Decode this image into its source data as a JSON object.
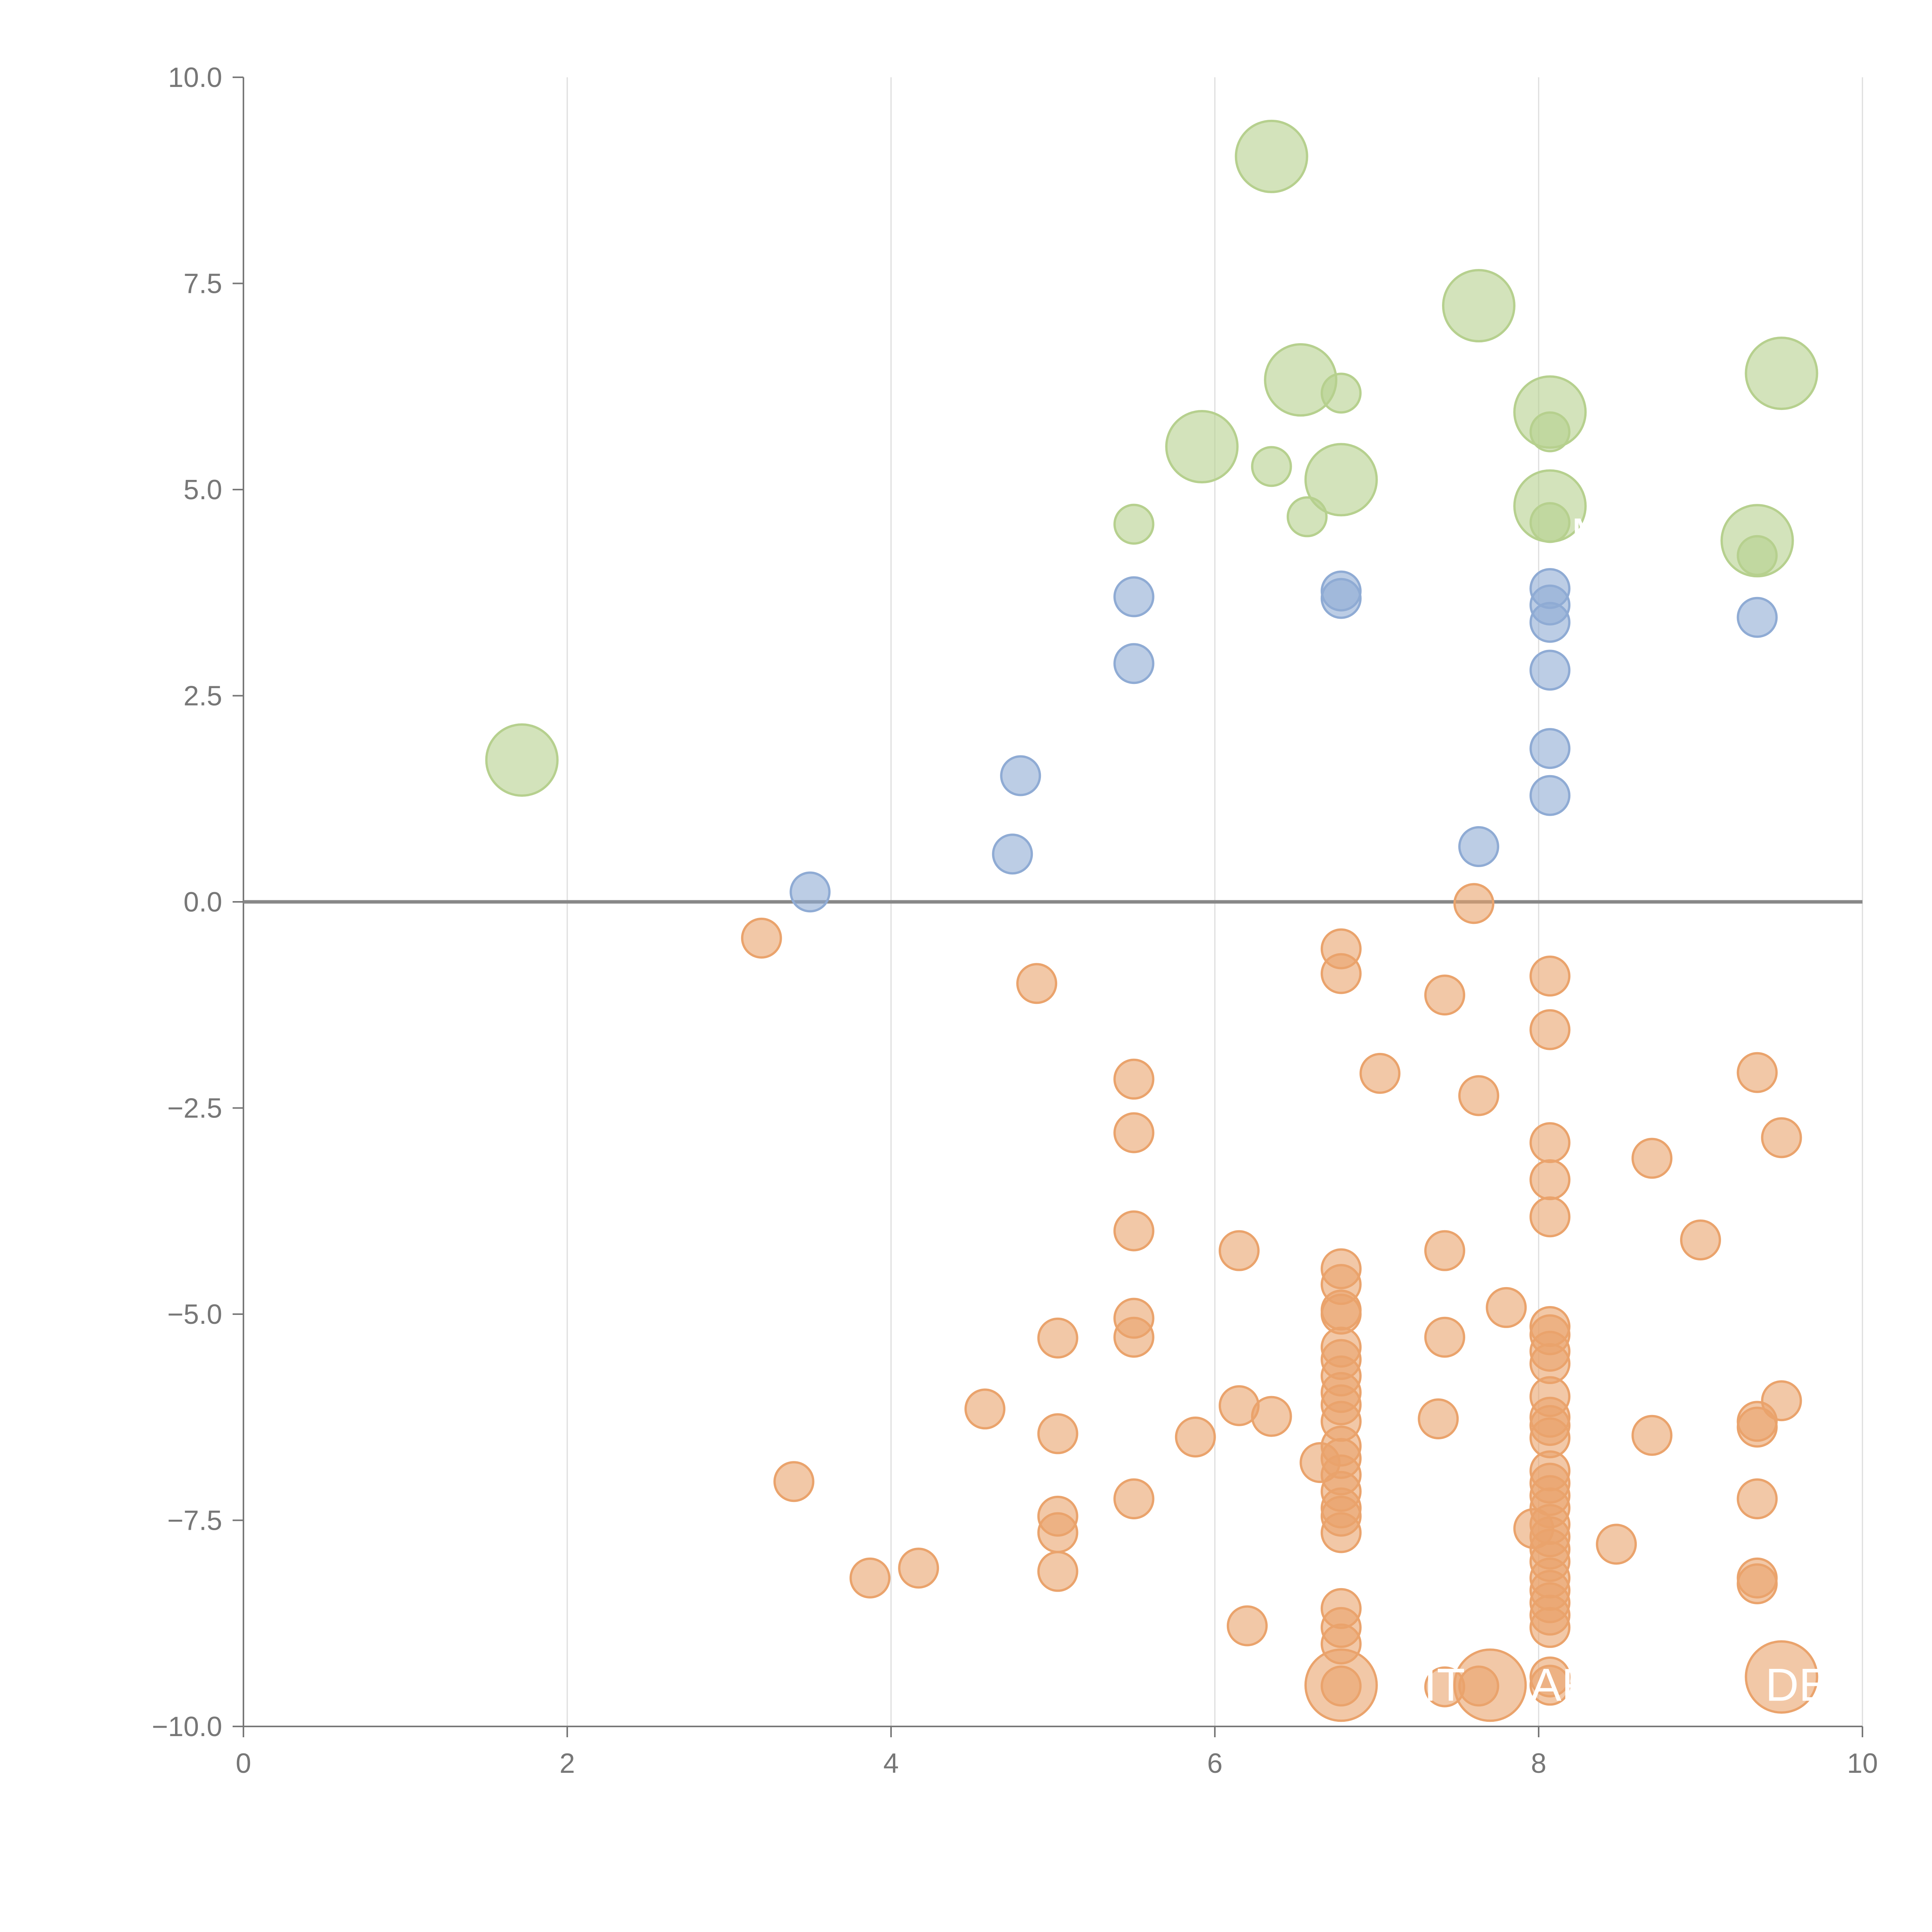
{
  "chart_data": {
    "type": "scatter",
    "title": "",
    "xlabel": "",
    "ylabel": "",
    "xlim": [
      0,
      10
    ],
    "ylim": [
      -10,
      10
    ],
    "x_ticks": [
      "0",
      "2",
      "4",
      "6",
      "8",
      "10"
    ],
    "y_ticks": [
      "10.0",
      "7.5",
      "5.0",
      "2.5",
      "0.0",
      "−2.5",
      "−5.0",
      "−7.5",
      "−10.0"
    ],
    "grid": "vertical gridlines at x ticks",
    "reference_line_y": 0,
    "colors": {
      "positive_small": "#8fabd4",
      "negative": "#eaa36c",
      "large": "#b6d08e",
      "axis": "#777777",
      "grid": "#dddddd",
      "zero_line": "#888888"
    },
    "series": [
      {
        "color": "#8fabd4",
        "points": [
          [
            3.5,
            0.12
          ],
          [
            4.8,
            1.53
          ],
          [
            4.75,
            0.58
          ],
          [
            5.5,
            3.7
          ],
          [
            5.5,
            2.89
          ],
          [
            6.78,
            3.77
          ],
          [
            6.78,
            3.68
          ],
          [
            7.63,
            0.67
          ],
          [
            8.07,
            3.8
          ],
          [
            8.07,
            3.6
          ],
          [
            8.07,
            3.39
          ],
          [
            8.07,
            2.81
          ],
          [
            8.07,
            1.86
          ],
          [
            8.07,
            1.29
          ],
          [
            9.35,
            3.45
          ]
        ]
      },
      {
        "color": "#eaa36c",
        "points": [
          [
            3.2,
            -0.44
          ],
          [
            3.4,
            -7.03
          ],
          [
            3.87,
            -8.2
          ],
          [
            4.17,
            -8.08
          ],
          [
            4.58,
            -6.15
          ],
          [
            4.9,
            -0.99
          ],
          [
            5.03,
            -5.29
          ],
          [
            5.03,
            -6.45
          ],
          [
            5.03,
            -7.45
          ],
          [
            5.03,
            -7.65
          ],
          [
            5.03,
            -8.12
          ],
          [
            5.5,
            -2.15
          ],
          [
            5.5,
            -2.8
          ],
          [
            5.5,
            -3.99
          ],
          [
            5.5,
            -5.05
          ],
          [
            5.5,
            -5.28
          ],
          [
            5.5,
            -7.24
          ],
          [
            5.88,
            -6.49
          ],
          [
            6.15,
            -4.23
          ],
          [
            6.15,
            -6.11
          ],
          [
            6.2,
            -8.78
          ],
          [
            6.35,
            -6.24
          ],
          [
            6.65,
            -6.8
          ],
          [
            6.78,
            -0.57
          ],
          [
            6.78,
            -0.87
          ],
          [
            6.78,
            -4.45
          ],
          [
            6.78,
            -4.64
          ],
          [
            6.78,
            -4.95
          ],
          [
            6.78,
            -5.0
          ],
          [
            6.78,
            -5.4
          ],
          [
            6.78,
            -5.55
          ],
          [
            6.78,
            -5.75
          ],
          [
            6.78,
            -5.95
          ],
          [
            6.78,
            -6.1
          ],
          [
            6.78,
            -6.3
          ],
          [
            6.78,
            -6.6
          ],
          [
            6.78,
            -6.75
          ],
          [
            6.78,
            -6.95
          ],
          [
            6.78,
            -7.15
          ],
          [
            6.78,
            -7.35
          ],
          [
            6.78,
            -7.45
          ],
          [
            6.78,
            -7.65
          ],
          [
            6.78,
            -8.57
          ],
          [
            6.78,
            -8.8
          ],
          [
            6.78,
            -9.0
          ],
          [
            6.78,
            -9.51
          ],
          [
            7.02,
            -2.08
          ],
          [
            7.38,
            -6.27
          ],
          [
            7.42,
            -1.13
          ],
          [
            7.42,
            -4.23
          ],
          [
            7.42,
            -5.28
          ],
          [
            7.42,
            -9.52
          ],
          [
            7.6,
            -0.02
          ],
          [
            7.63,
            -2.35
          ],
          [
            7.63,
            -9.51
          ],
          [
            7.8,
            -4.92
          ],
          [
            7.97,
            -7.6
          ],
          [
            8.07,
            -0.9
          ],
          [
            8.07,
            -1.55
          ],
          [
            8.07,
            -2.92
          ],
          [
            8.07,
            -3.37
          ],
          [
            8.07,
            -3.82
          ],
          [
            8.07,
            -5.15
          ],
          [
            8.07,
            -5.25
          ],
          [
            8.07,
            -5.45
          ],
          [
            8.07,
            -5.6
          ],
          [
            8.07,
            -6.0
          ],
          [
            8.07,
            -6.25
          ],
          [
            8.07,
            -6.35
          ],
          [
            8.07,
            -6.5
          ],
          [
            8.07,
            -6.9
          ],
          [
            8.07,
            -7.05
          ],
          [
            8.07,
            -7.2
          ],
          [
            8.07,
            -7.35
          ],
          [
            8.07,
            -7.55
          ],
          [
            8.07,
            -7.7
          ],
          [
            8.07,
            -7.85
          ],
          [
            8.07,
            -8.0
          ],
          [
            8.07,
            -8.2
          ],
          [
            8.07,
            -8.35
          ],
          [
            8.07,
            -8.5
          ],
          [
            8.07,
            -8.65
          ],
          [
            8.07,
            -8.8
          ],
          [
            8.07,
            -9.4
          ],
          [
            8.07,
            -9.5
          ],
          [
            8.48,
            -7.79
          ],
          [
            8.7,
            -3.11
          ],
          [
            8.7,
            -6.47
          ],
          [
            9.0,
            -4.1
          ],
          [
            9.35,
            -2.07
          ],
          [
            9.35,
            -6.3
          ],
          [
            9.35,
            -6.37
          ],
          [
            9.35,
            -7.24
          ],
          [
            9.35,
            -8.2
          ],
          [
            9.35,
            -8.27
          ],
          [
            9.5,
            -2.86
          ],
          [
            9.5,
            -6.05
          ]
        ]
      },
      {
        "color": "#b6d08e",
        "points": [
          [
            5.5,
            4.58
          ],
          [
            6.35,
            5.28
          ],
          [
            6.57,
            4.67
          ],
          [
            6.78,
            6.17
          ],
          [
            8.07,
            5.7
          ],
          [
            8.07,
            4.6
          ],
          [
            9.35,
            4.2
          ]
        ]
      }
    ],
    "large_points": [
      {
        "color": "#b6d08e",
        "x": 1.72,
        "y": 1.72
      },
      {
        "color": "#b6d08e",
        "x": 5.92,
        "y": 5.52
      },
      {
        "color": "#b6d08e",
        "x": 6.35,
        "y": 9.04
      },
      {
        "color": "#b6d08e",
        "x": 6.53,
        "y": 6.33
      },
      {
        "color": "#b6d08e",
        "x": 6.78,
        "y": 5.12
      },
      {
        "color": "#b6d08e",
        "x": 7.63,
        "y": 7.23
      },
      {
        "color": "#b6d08e",
        "x": 8.07,
        "y": 5.94
      },
      {
        "color": "#b6d08e",
        "x": 8.07,
        "y": 4.8
      },
      {
        "color": "#b6d08e",
        "x": 9.35,
        "y": 4.38
      },
      {
        "color": "#b6d08e",
        "x": 9.5,
        "y": 6.41
      },
      {
        "color": "#eaa36c",
        "x": 6.78,
        "y": -9.5
      },
      {
        "color": "#eaa36c",
        "x": 7.7,
        "y": -9.5
      },
      {
        "color": "#eaa36c",
        "x": 9.5,
        "y": -9.4
      }
    ],
    "annotations": [
      {
        "text": "MC",
        "x": 8.2,
        "y": 4.45
      },
      {
        "text": "PIT",
        "x": 7.1,
        "y": -9.5
      },
      {
        "text": "AR",
        "x": 7.95,
        "y": -9.5
      },
      {
        "text": "DE",
        "x": 9.4,
        "y": -9.5
      }
    ]
  }
}
